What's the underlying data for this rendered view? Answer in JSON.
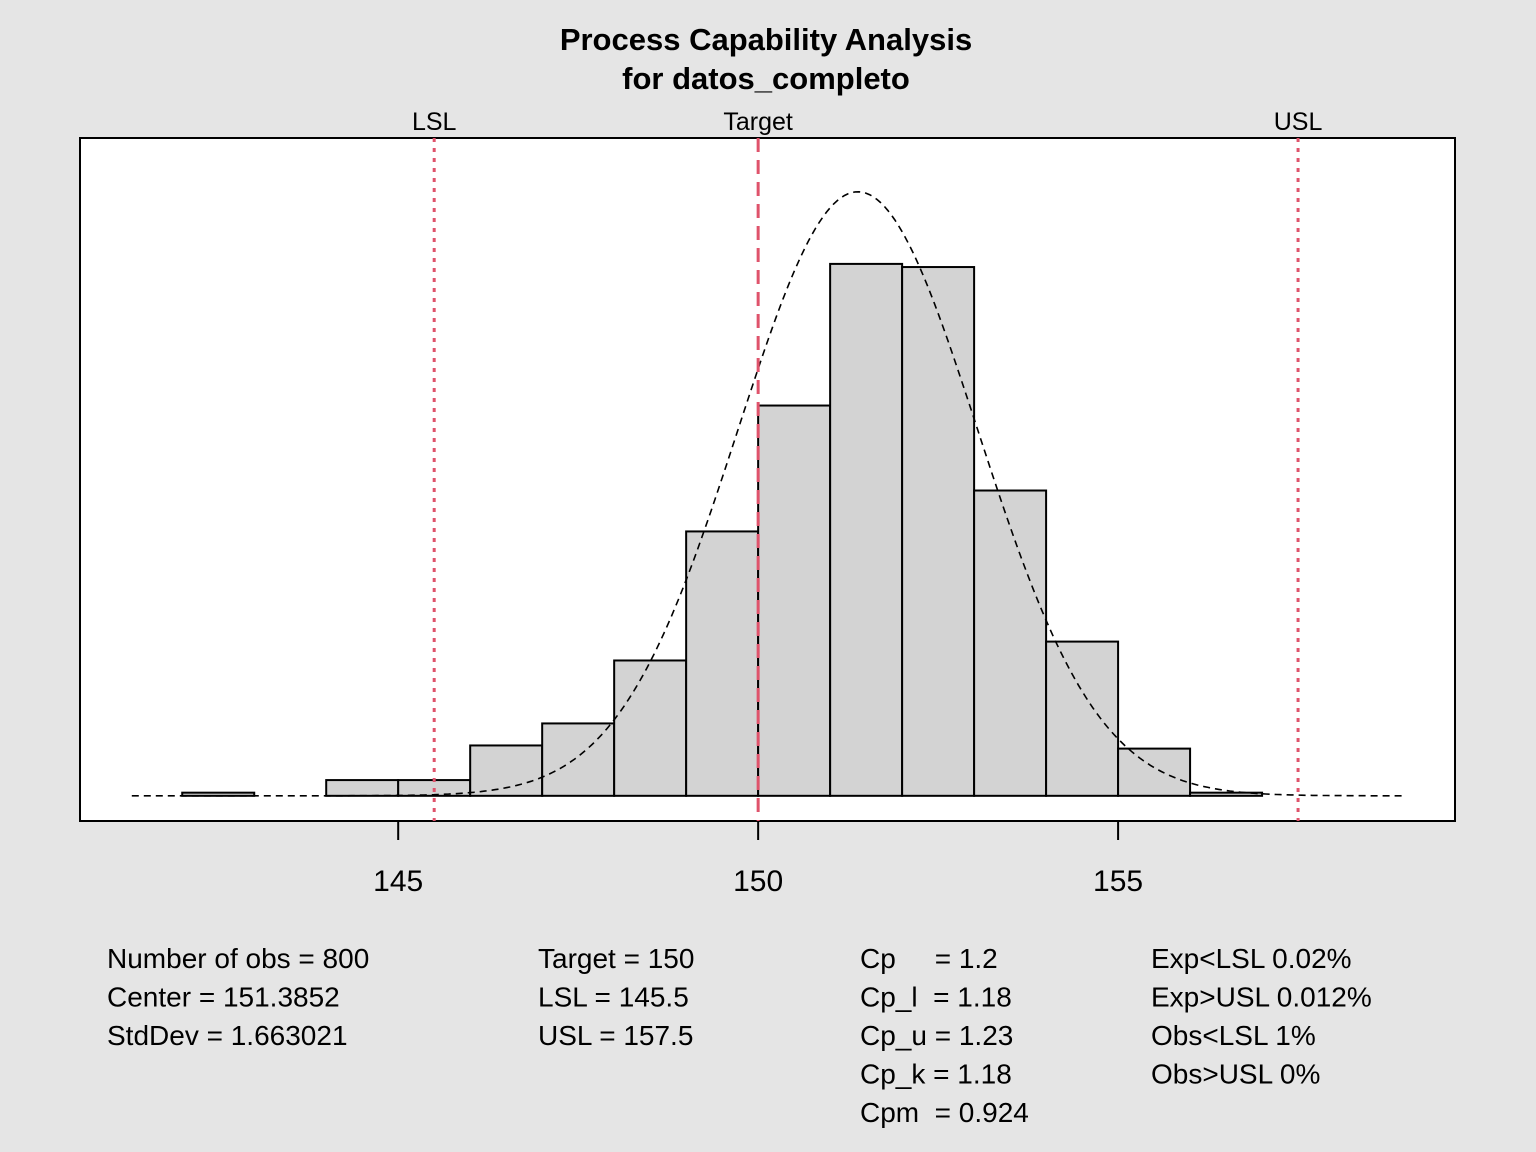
{
  "chart_data": {
    "type": "bar",
    "title": "Process Capability Analysis",
    "subtitle": "for datos_completo",
    "xlabel": "",
    "ylabel": "",
    "xlim": [
      140.58,
      159.68
    ],
    "ylim": [
      -8,
      209
    ],
    "xticks": [
      145,
      150,
      155
    ],
    "grid": false,
    "bins": [
      {
        "from": 142,
        "to": 143,
        "count": 1
      },
      {
        "from": 143,
        "to": 144,
        "count": 0
      },
      {
        "from": 144,
        "to": 145,
        "count": 5
      },
      {
        "from": 145,
        "to": 146,
        "count": 5
      },
      {
        "from": 146,
        "to": 147,
        "count": 16
      },
      {
        "from": 147,
        "to": 148,
        "count": 23
      },
      {
        "from": 148,
        "to": 149,
        "count": 43
      },
      {
        "from": 149,
        "to": 150,
        "count": 84
      },
      {
        "from": 150,
        "to": 151,
        "count": 124
      },
      {
        "from": 151,
        "to": 152,
        "count": 169
      },
      {
        "from": 152,
        "to": 153,
        "count": 168
      },
      {
        "from": 153,
        "to": 154,
        "count": 97
      },
      {
        "from": 154,
        "to": 155,
        "count": 49
      },
      {
        "from": 155,
        "to": 156,
        "count": 15
      },
      {
        "from": 156,
        "to": 157,
        "count": 1
      }
    ],
    "density_curve": {
      "type": "normal",
      "mean": 151.3852,
      "sd": 1.663021,
      "n": 800,
      "bin_width": 1,
      "range": [
        141.3,
        159.0
      ]
    },
    "spec_lines": [
      {
        "label": "LSL",
        "value": 145.5,
        "style": "dotted"
      },
      {
        "label": "Target",
        "value": 150,
        "style": "dashed"
      },
      {
        "label": "USL",
        "value": 157.5,
        "style": "dotted"
      }
    ],
    "colors": {
      "bar_fill": "#D3D3D3",
      "spec_line": "#DF536B",
      "background": "#E5E5E5"
    }
  },
  "stats": {
    "col1": [
      "Number of obs = 800",
      "Center = 151.3852",
      "StdDev = 1.663021"
    ],
    "col2": [
      "Target = 150",
      "LSL = 145.5",
      "USL = 157.5"
    ],
    "col3": [
      "Cp     = 1.2",
      "Cp_l  = 1.18",
      "Cp_u = 1.23",
      "Cp_k = 1.18",
      "Cpm  = 0.924"
    ],
    "col4": [
      "Exp<LSL 0.02%",
      "Exp>USL 0.012%",
      "Obs<LSL 1%",
      "Obs>USL 0%"
    ]
  }
}
